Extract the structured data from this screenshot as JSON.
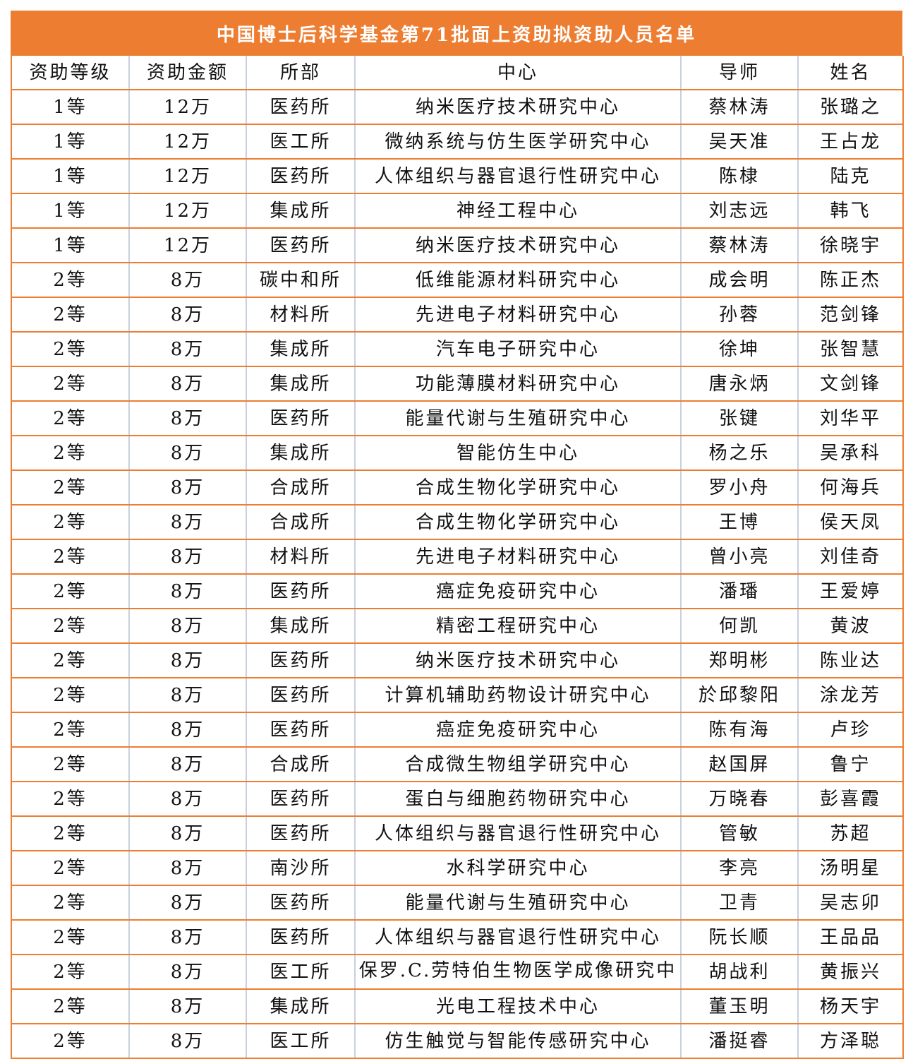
{
  "title": "中国博士后科学基金第71批面上资助拟资助人员名单",
  "colors": {
    "header_bg": "#ed7d31",
    "row_line": "#ed7d31",
    "column_line": "#c8cfe0"
  },
  "columns": [
    "资助等级",
    "资助金额",
    "所部",
    "中心",
    "导师",
    "姓名"
  ],
  "rows": [
    [
      "1等",
      "12万",
      "医药所",
      "纳米医疗技术研究中心",
      "蔡林涛",
      "张璐之"
    ],
    [
      "1等",
      "12万",
      "医工所",
      "微纳系统与仿生医学研究中心",
      "吴天准",
      "王占龙"
    ],
    [
      "1等",
      "12万",
      "医药所",
      "人体组织与器官退行性研究中心",
      "陈棣",
      "陆克"
    ],
    [
      "1等",
      "12万",
      "集成所",
      "神经工程中心",
      "刘志远",
      "韩飞"
    ],
    [
      "1等",
      "12万",
      "医药所",
      "纳米医疗技术研究中心",
      "蔡林涛",
      "徐晓宇"
    ],
    [
      "2等",
      "8万",
      "碳中和所",
      "低维能源材料研究中心",
      "成会明",
      "陈正杰"
    ],
    [
      "2等",
      "8万",
      "材料所",
      "先进电子材料研究中心",
      "孙蓉",
      "范剑锋"
    ],
    [
      "2等",
      "8万",
      "集成所",
      "汽车电子研究中心",
      "徐坤",
      "张智慧"
    ],
    [
      "2等",
      "8万",
      "集成所",
      "功能薄膜材料研究中心",
      "唐永炳",
      "文剑锋"
    ],
    [
      "2等",
      "8万",
      "医药所",
      "能量代谢与生殖研究中心",
      "张键",
      "刘华平"
    ],
    [
      "2等",
      "8万",
      "集成所",
      "智能仿生中心",
      "杨之乐",
      "吴承科"
    ],
    [
      "2等",
      "8万",
      "合成所",
      "合成生物化学研究中心",
      "罗小舟",
      "何海兵"
    ],
    [
      "2等",
      "8万",
      "合成所",
      "合成生物化学研究中心",
      "王博",
      "侯天凤"
    ],
    [
      "2等",
      "8万",
      "材料所",
      "先进电子材料研究中心",
      "曾小亮",
      "刘佳奇"
    ],
    [
      "2等",
      "8万",
      "医药所",
      "癌症免疫研究中心",
      "潘璠",
      "王爱婷"
    ],
    [
      "2等",
      "8万",
      "集成所",
      "精密工程研究中心",
      "何凯",
      "黄波"
    ],
    [
      "2等",
      "8万",
      "医药所",
      "纳米医疗技术研究中心",
      "郑明彬",
      "陈业达"
    ],
    [
      "2等",
      "8万",
      "医药所",
      "计算机辅助药物设计研究中心",
      "於邱黎阳",
      "涂龙芳"
    ],
    [
      "2等",
      "8万",
      "医药所",
      "癌症免疫研究中心",
      "陈有海",
      "卢珍"
    ],
    [
      "2等",
      "8万",
      "合成所",
      "合成微生物组学研究中心",
      "赵国屏",
      "鲁宁"
    ],
    [
      "2等",
      "8万",
      "医药所",
      "蛋白与细胞药物研究中心",
      "万晓春",
      "彭喜霞"
    ],
    [
      "2等",
      "8万",
      "医药所",
      "人体组织与器官退行性研究中心",
      "管敏",
      "苏超"
    ],
    [
      "2等",
      "8万",
      "南沙所",
      "水科学研究中心",
      "李亮",
      "汤明星"
    ],
    [
      "2等",
      "8万",
      "医药所",
      "能量代谢与生殖研究中心",
      "卫青",
      "吴志卯"
    ],
    [
      "2等",
      "8万",
      "医药所",
      "人体组织与器官退行性研究中心",
      "阮长顺",
      "王品品"
    ],
    [
      "2等",
      "8万",
      "医工所",
      "保罗.C.劳特伯生物医学成像研究中心",
      "胡战利",
      "黄振兴"
    ],
    [
      "2等",
      "8万",
      "集成所",
      "光电工程技术中心",
      "董玉明",
      "杨天宇"
    ],
    [
      "2等",
      "8万",
      "医工所",
      "仿生触觉与智能传感研究中心",
      "潘挺睿",
      "方泽聪"
    ]
  ]
}
